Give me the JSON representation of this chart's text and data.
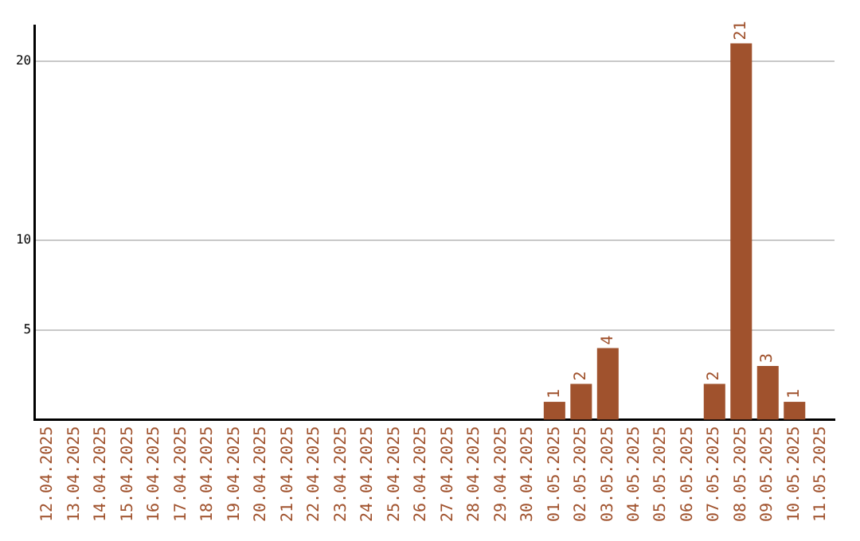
{
  "chart_data": {
    "type": "bar",
    "categories": [
      "12.04.2025",
      "13.04.2025",
      "14.04.2025",
      "15.04.2025",
      "16.04.2025",
      "17.04.2025",
      "18.04.2025",
      "19.04.2025",
      "20.04.2025",
      "21.04.2025",
      "22.04.2025",
      "23.04.2025",
      "24.04.2025",
      "25.04.2025",
      "26.04.2025",
      "27.04.2025",
      "28.04.2025",
      "29.04.2025",
      "30.04.2025",
      "01.05.2025",
      "02.05.2025",
      "03.05.2025",
      "04.05.2025",
      "05.05.2025",
      "06.05.2025",
      "07.05.2025",
      "08.05.2025",
      "09.05.2025",
      "10.05.2025",
      "11.05.2025"
    ],
    "values": [
      0,
      0,
      0,
      0,
      0,
      0,
      0,
      0,
      0,
      0,
      0,
      0,
      0,
      0,
      0,
      0,
      0,
      0,
      0,
      1,
      2,
      4,
      0,
      0,
      0,
      2,
      21,
      3,
      1,
      0
    ],
    "value_labels": [
      null,
      null,
      null,
      null,
      null,
      null,
      null,
      null,
      null,
      null,
      null,
      null,
      null,
      null,
      null,
      null,
      null,
      null,
      null,
      "1",
      "2",
      "4",
      null,
      null,
      null,
      "2",
      "21",
      "3",
      "1",
      null
    ],
    "color": "#a0522d",
    "ylim": [
      0,
      22
    ],
    "yticks": [
      5,
      10,
      20
    ],
    "grid": "y"
  }
}
